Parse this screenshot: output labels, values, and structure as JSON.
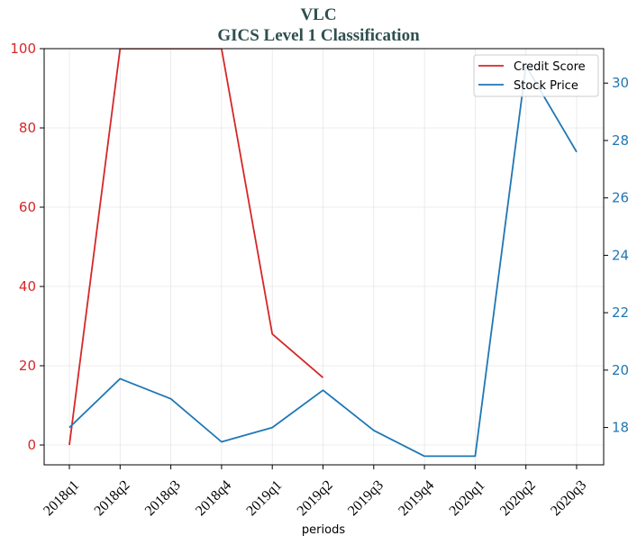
{
  "chart_data": {
    "type": "line",
    "title": "VLC",
    "subtitle": "GICS Level 1 Classification",
    "xlabel": "periods",
    "categories": [
      "2018q1",
      "2018q2",
      "2018q3",
      "2018q4",
      "2019q1",
      "2019q2",
      "2019q3",
      "2019q4",
      "2020q1",
      "2020q2",
      "2020q3"
    ],
    "left_axis": {
      "ylim": [
        -5,
        100
      ],
      "ticks": [
        0,
        20,
        40,
        60,
        80,
        100
      ],
      "color": "#d62728"
    },
    "right_axis": {
      "ylim": [
        16.7,
        31.2
      ],
      "ticks": [
        18,
        20,
        22,
        24,
        26,
        28,
        30
      ],
      "color": "#1f77b4"
    },
    "grid": true,
    "legend_position": "top-right",
    "series": [
      {
        "name": "Credit Score",
        "axis": "left",
        "color": "#d62728",
        "values": [
          0,
          100,
          null,
          100,
          28,
          17,
          null,
          null,
          null,
          null,
          null
        ]
      },
      {
        "name": "Stock Price",
        "axis": "right",
        "color": "#1f77b4",
        "values": [
          18.0,
          19.7,
          19.0,
          17.5,
          18.0,
          19.3,
          17.9,
          17.0,
          17.0,
          30.6,
          27.6
        ]
      }
    ]
  }
}
